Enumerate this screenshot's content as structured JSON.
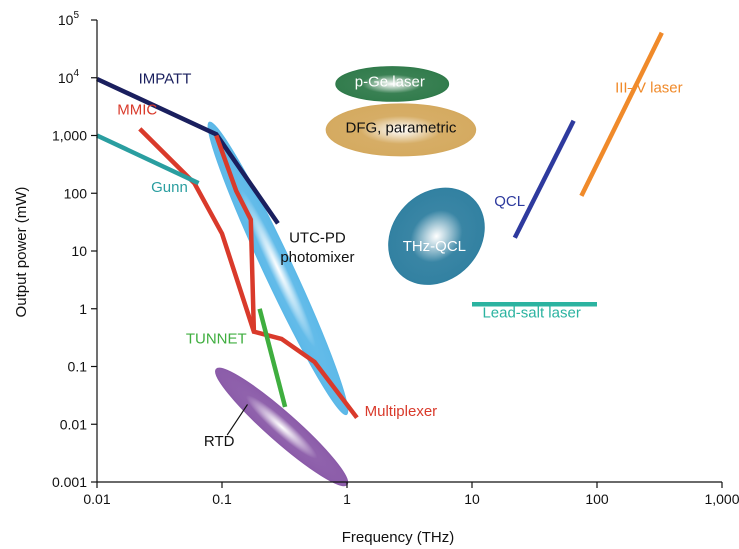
{
  "chart_data": {
    "type": "line",
    "xlabel": "Frequency (THz)",
    "ylabel": "Output power (mW)",
    "xscale": "log",
    "yscale": "log",
    "xlim": [
      0.01,
      1000
    ],
    "ylim": [
      0.001,
      100000
    ],
    "grid": false,
    "x_ticks": [
      {
        "value": 0.01,
        "label": "0.01"
      },
      {
        "value": 0.1,
        "label": "0.1"
      },
      {
        "value": 1,
        "label": "1"
      },
      {
        "value": 10,
        "label": "10"
      },
      {
        "value": 100,
        "label": "100"
      },
      {
        "value": 1000,
        "label": "1,000"
      }
    ],
    "y_ticks": [
      {
        "value": 0.001,
        "label": "0.001",
        "sup": ""
      },
      {
        "value": 0.01,
        "label": "0.01",
        "sup": ""
      },
      {
        "value": 0.1,
        "label": "0.1",
        "sup": ""
      },
      {
        "value": 1,
        "label": "1",
        "sup": ""
      },
      {
        "value": 10,
        "label": "10",
        "sup": ""
      },
      {
        "value": 100,
        "label": "100",
        "sup": ""
      },
      {
        "value": 1000,
        "label": "1,000",
        "sup": ""
      },
      {
        "value": 10000,
        "label": "10",
        "sup": "4"
      },
      {
        "value": 100000,
        "label": "10",
        "sup": "5"
      }
    ],
    "series": [
      {
        "name": "IMPATT",
        "color": "#1a1f5e",
        "points": [
          [
            0.01,
            9500
          ],
          [
            0.09,
            1050
          ],
          [
            0.28,
            30
          ]
        ]
      },
      {
        "name": "MMIC",
        "color": "#d93a2b",
        "points": [
          [
            0.022,
            1300
          ],
          [
            0.06,
            150
          ],
          [
            0.1,
            20
          ],
          [
            0.18,
            0.4
          ],
          [
            0.3,
            0.3
          ],
          [
            0.55,
            0.12
          ],
          [
            1.2,
            0.013
          ]
        ]
      },
      {
        "name": "MMIC-upper",
        "color": "#d93a2b",
        "points": [
          [
            0.09,
            1000
          ],
          [
            0.13,
            110
          ],
          [
            0.17,
            35
          ],
          [
            0.18,
            0.4
          ]
        ]
      },
      {
        "name": "Gunn",
        "color": "#2a9ea0",
        "points": [
          [
            0.01,
            1000
          ],
          [
            0.065,
            150
          ]
        ]
      },
      {
        "name": "TUNNET",
        "color": "#3fae3f",
        "points": [
          [
            0.2,
            1
          ],
          [
            0.32,
            0.02
          ]
        ]
      },
      {
        "name": "QCL",
        "color": "#2e3a9e",
        "points": [
          [
            22,
            17
          ],
          [
            65,
            1800
          ]
        ]
      },
      {
        "name": "III–V laser",
        "color": "#f08a2a",
        "points": [
          [
            75,
            90
          ],
          [
            330,
            60000
          ]
        ]
      },
      {
        "name": "Lead-salt laser",
        "color": "#2bb3a0",
        "points": [
          [
            10,
            1.2
          ],
          [
            100,
            1.2
          ]
        ]
      }
    ],
    "regions": [
      {
        "name": "UTC-PD photomixer",
        "color": "#5bb8e8",
        "center": [
          0.28,
          5
        ],
        "ends": [
          [
            0.08,
            150
          ],
          [
            1.0,
            0.0013
          ]
        ],
        "width_decades": 0.25
      },
      {
        "name": "RTD",
        "color": "#8a5aa8",
        "center": [
          0.3,
          0.009
        ],
        "ends": [
          [
            0.09,
            0.12
          ],
          [
            1.0,
            0.0012
          ]
        ],
        "width_decades": 0.25
      },
      {
        "name": "THz-QCL",
        "color": "#2f7fa0",
        "center": [
          5.2,
          18
        ],
        "ends": [
          [
            2.5,
            5
          ],
          [
            9.5,
            100
          ]
        ],
        "width_decades": 0.75
      },
      {
        "name": "p-Ge laser",
        "color": "#2f7a4a",
        "center": [
          2.3,
          7800
        ],
        "ends": [
          [
            0.85,
            7800
          ],
          [
            6.8,
            7800
          ]
        ],
        "width_decades": 0.3
      },
      {
        "name": "DFG, parametric",
        "color": "#d4a95e",
        "center": [
          2.7,
          1250
        ],
        "ends": [
          [
            0.7,
            1250
          ],
          [
            11,
            1250
          ]
        ],
        "width_decades": 0.45
      }
    ],
    "annotations": [
      {
        "text": "IMPATT",
        "color": "#1a1f5e",
        "at": [
          0.035,
          8000
        ]
      },
      {
        "text": "MMIC",
        "color": "#d93a2b",
        "at": [
          0.021,
          2300
        ]
      },
      {
        "text": "Gunn",
        "color": "#2a9ea0",
        "at": [
          0.038,
          105
        ]
      },
      {
        "text": "UTC-PD",
        "color": "#111111",
        "at": [
          0.58,
          14
        ]
      },
      {
        "text": "photomixer",
        "color": "#111111",
        "at": [
          0.58,
          6.5
        ]
      },
      {
        "text": "THz-QCL",
        "color": "#ffffff",
        "at": [
          5.0,
          10
        ]
      },
      {
        "text": "p-Ge laser",
        "color": "#ffffff",
        "at": [
          2.2,
          7000
        ]
      },
      {
        "text": "DFG, parametric",
        "color": "#111111",
        "at": [
          2.7,
          1130
        ]
      },
      {
        "text": "QCL",
        "color": "#2e3a9e",
        "at": [
          20,
          60
        ]
      },
      {
        "text": "III–V laser",
        "color": "#f08a2a",
        "at": [
          260,
          5600
        ]
      },
      {
        "text": "Lead-salt laser",
        "color": "#2bb3a0",
        "at": [
          30,
          0.7
        ]
      },
      {
        "text": "TUNNET",
        "color": "#3fae3f",
        "at": [
          0.09,
          0.25
        ]
      },
      {
        "text": "Multiplexer",
        "color": "#d93a2b",
        "at": [
          2.7,
          0.014
        ]
      },
      {
        "text": "RTD",
        "color": "#111111",
        "at": [
          0.095,
          0.0042
        ]
      }
    ]
  }
}
